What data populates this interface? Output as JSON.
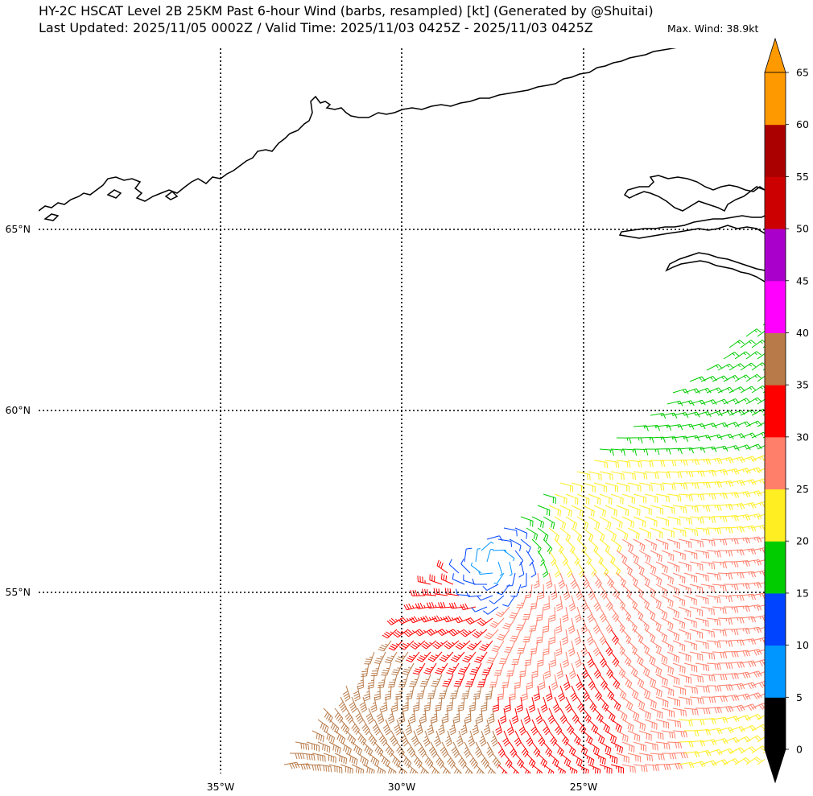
{
  "title": {
    "line1": "HY-2C HSCAT Level 2B 25KM Past 6-hour Wind (barbs, resampled) [kt] (Generated by @Shuitai)",
    "line2": "Last Updated: 2025/11/05 0002Z / Valid Time: 2025/11/03 0425Z - 2025/11/03 0425Z",
    "max_wind": "Max. Wind: 38.9kt"
  },
  "map": {
    "lon_labels": [
      "35°W",
      "30°W",
      "25°W"
    ],
    "lat_labels": [
      "65°N",
      "60°N",
      "55°N"
    ],
    "gridline_style": "dotted",
    "land_features": [
      "Greenland southeast coast",
      "Iceland west coast"
    ],
    "wind_field": {
      "description_region": "Irminger Sea swath",
      "low_center": {
        "lon": -27.5,
        "lat": 55.8
      },
      "speed_zones_kt": [
        {
          "range": "5-10",
          "color": "#0096ff",
          "area": "near low center"
        },
        {
          "range": "10-15",
          "color": "#0044ff",
          "area": "around low / north edge"
        },
        {
          "range": "15-20",
          "color": "#00cc00",
          "area": "north of low"
        },
        {
          "range": "20-25",
          "color": "#ffee22",
          "area": "east band"
        },
        {
          "range": "25-30",
          "color": "#ff7f6b",
          "area": "southeast"
        },
        {
          "range": "30-35",
          "color": "#dd0000",
          "area": "south band"
        },
        {
          "range": "35-40",
          "color": "#b87a48",
          "area": "southwest of low"
        }
      ]
    }
  },
  "colorbar": {
    "ticks": [
      "0",
      "5",
      "10",
      "15",
      "20",
      "25",
      "30",
      "35",
      "40",
      "45",
      "50",
      "55",
      "60",
      "65"
    ],
    "colors": [
      "#000000",
      "#0096ff",
      "#0044ff",
      "#00cc00",
      "#ffee22",
      "#ff7f6b",
      "#ff0000",
      "#b87a48",
      "#ff00ff",
      "#aa00cc",
      "#cc0000",
      "#aa0000",
      "#ff9900"
    ],
    "under_color": "#000000",
    "over_color": "#ff9900"
  }
}
